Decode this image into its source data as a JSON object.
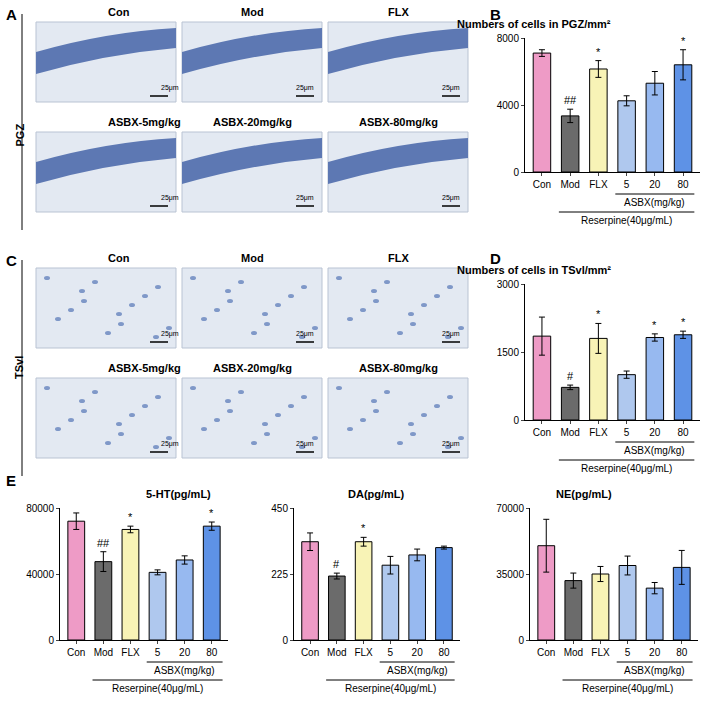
{
  "image_panels": [
    {
      "panel": "A",
      "region": "PGZ",
      "tiles": [
        "Con",
        "Mod",
        "FLX",
        "ASBX-5mg/kg",
        "ASBX-20mg/kg",
        "ASBX-80mg/kg"
      ],
      "scale_bar": "25μm"
    },
    {
      "panel": "C",
      "region": "TSvl",
      "tiles": [
        "Con",
        "Mod",
        "FLX",
        "ASBX-5mg/kg",
        "ASBX-20mg/kg",
        "ASBX-80mg/kg"
      ],
      "scale_bar": "25μm"
    }
  ],
  "chart_data": [
    {
      "type": "bar",
      "panel": "B",
      "title": "Numbers of cells in PGZ/mm²",
      "categories": [
        "Con",
        "Mod",
        "FLX",
        "5",
        "20",
        "80"
      ],
      "values": [
        7100,
        3350,
        6150,
        4250,
        5300,
        6400
      ],
      "errors": [
        200,
        400,
        500,
        300,
        700,
        900
      ],
      "significance": [
        null,
        "##",
        "*",
        null,
        null,
        "*"
      ],
      "colors": [
        "#ee9bc6",
        "#6b6b6b",
        "#f8f3b6",
        "#afc8ee",
        "#97b9f0",
        "#5e92e6"
      ],
      "ylim": [
        0,
        8000
      ],
      "yticks": [
        0,
        4000,
        8000
      ],
      "group_label": "ASBX(mg/kg)",
      "treatment_label": "Reserpine(40μg/mL)"
    },
    {
      "type": "bar",
      "panel": "D",
      "title": "Numbers of cells in TSvl/mm²",
      "categories": [
        "Con",
        "Mod",
        "FLX",
        "5",
        "20",
        "80"
      ],
      "values": [
        1850,
        720,
        1800,
        1000,
        1820,
        1880
      ],
      "errors": [
        420,
        50,
        330,
        80,
        80,
        80
      ],
      "significance": [
        null,
        "#",
        "*",
        null,
        "*",
        "*"
      ],
      "colors": [
        "#ee9bc6",
        "#6b6b6b",
        "#f8f3b6",
        "#afc8ee",
        "#97b9f0",
        "#5e92e6"
      ],
      "ylim": [
        0,
        3000
      ],
      "yticks": [
        0,
        1500,
        3000
      ],
      "group_label": "ASBX(mg/kg)",
      "treatment_label": "Reserpine(40μg/mL)"
    },
    {
      "type": "bar",
      "panel": "E",
      "title": "5-HT(pg/mL)",
      "categories": [
        "Con",
        "Mod",
        "FLX",
        "5",
        "20",
        "80"
      ],
      "values": [
        72000,
        47500,
        67000,
        41000,
        48500,
        69000
      ],
      "errors": [
        5000,
        6000,
        2000,
        1500,
        2500,
        2500
      ],
      "significance": [
        null,
        "##",
        "*",
        null,
        null,
        "*"
      ],
      "colors": [
        "#ee9bc6",
        "#6b6b6b",
        "#f8f3b6",
        "#afc8ee",
        "#97b9f0",
        "#5e92e6"
      ],
      "ylim": [
        0,
        80000
      ],
      "yticks": [
        0,
        40000,
        80000
      ],
      "group_label": "ASBX(mg/kg)",
      "treatment_label": "Reserpine(40μg/mL)"
    },
    {
      "type": "bar",
      "title": "DA(pg/mL)",
      "categories": [
        "Con",
        "Mod",
        "FLX",
        "5",
        "20",
        "80"
      ],
      "values": [
        335,
        218,
        335,
        255,
        290,
        315
      ],
      "errors": [
        30,
        10,
        15,
        30,
        20,
        5
      ],
      "significance": [
        null,
        "#",
        "*",
        null,
        null,
        null
      ],
      "colors": [
        "#ee9bc6",
        "#6b6b6b",
        "#f8f3b6",
        "#afc8ee",
        "#97b9f0",
        "#5e92e6"
      ],
      "ylim": [
        0,
        450
      ],
      "yticks": [
        0,
        225,
        450
      ],
      "group_label": "ASBX(mg/kg)",
      "treatment_label": "Reserpine(40μg/mL)"
    },
    {
      "type": "bar",
      "title": "NE(pg/mL)",
      "categories": [
        "Con",
        "Mod",
        "FLX",
        "5",
        "20",
        "80"
      ],
      "values": [
        50000,
        31500,
        35000,
        39500,
        27500,
        38500
      ],
      "errors": [
        14000,
        4000,
        4000,
        5000,
        3000,
        9000
      ],
      "significance": [
        null,
        null,
        null,
        null,
        null,
        null
      ],
      "colors": [
        "#ee9bc6",
        "#6b6b6b",
        "#f8f3b6",
        "#afc8ee",
        "#97b9f0",
        "#5e92e6"
      ],
      "ylim": [
        0,
        70000
      ],
      "yticks": [
        0,
        35000,
        70000
      ],
      "group_label": "ASBX(mg/kg)",
      "treatment_label": "Reserpine(40μg/mL)"
    }
  ]
}
